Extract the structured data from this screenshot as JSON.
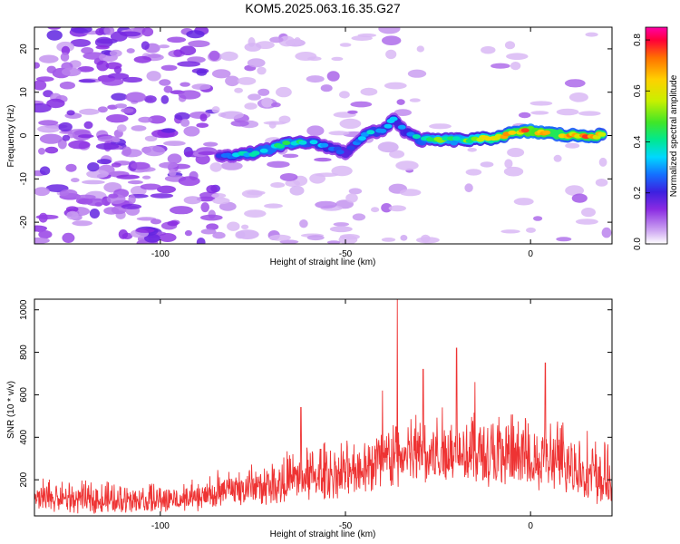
{
  "title": "KOM5.2025.063.16.35.G27",
  "chart_data": [
    {
      "type": "heatmap",
      "xlabel": "Height of straight line (km)",
      "ylabel": "Frequency (Hz)",
      "xlim": [
        -134,
        22
      ],
      "ylim": [
        -25,
        25
      ],
      "x_ticks": [
        -100,
        -50,
        0
      ],
      "y_ticks": [
        -20,
        -10,
        0,
        10,
        20
      ],
      "colorbar": {
        "label": "Normalized spectral amplitude",
        "range": [
          0.0,
          0.85
        ],
        "ticks": [
          0.0,
          0.2,
          0.4,
          0.6,
          0.8
        ],
        "colors": [
          "#ffffff",
          "#cfa8f2",
          "#8a2be2",
          "#3c20e0",
          "#1470ff",
          "#00d8ff",
          "#00e890",
          "#3fe628",
          "#c8f000",
          "#ffd000",
          "#ff7000",
          "#ff0038",
          "#ff00a8"
        ]
      },
      "noise_region": {
        "x": [
          -134,
          -84
        ],
        "y": [
          -25,
          25
        ],
        "level": "0.05-0.15"
      },
      "ridge": [
        {
          "x": -84,
          "y": -4.5,
          "v": 0.28
        },
        {
          "x": -78,
          "y": -4.5,
          "v": 0.4
        },
        {
          "x": -72,
          "y": -3.5,
          "v": 0.45
        },
        {
          "x": -66,
          "y": -2.0,
          "v": 0.5
        },
        {
          "x": -60,
          "y": -1.5,
          "v": 0.42
        },
        {
          "x": -55,
          "y": -2.5,
          "v": 0.35
        },
        {
          "x": -50,
          "y": -4.0,
          "v": 0.3
        },
        {
          "x": -47,
          "y": -1.5,
          "v": 0.33
        },
        {
          "x": -44,
          "y": 0.5,
          "v": 0.4
        },
        {
          "x": -40,
          "y": 1.0,
          "v": 0.38
        },
        {
          "x": -37,
          "y": 4.0,
          "v": 0.35
        },
        {
          "x": -34,
          "y": 1.0,
          "v": 0.33
        },
        {
          "x": -30,
          "y": -1.0,
          "v": 0.42
        },
        {
          "x": -25,
          "y": -1.0,
          "v": 0.55
        },
        {
          "x": -20,
          "y": -1.0,
          "v": 0.5
        },
        {
          "x": -15,
          "y": -1.0,
          "v": 0.58
        },
        {
          "x": -10,
          "y": -0.5,
          "v": 0.68
        },
        {
          "x": -5,
          "y": 0.5,
          "v": 0.74
        },
        {
          "x": 0,
          "y": 1.0,
          "v": 0.84
        },
        {
          "x": 5,
          "y": 0.5,
          "v": 0.78
        },
        {
          "x": 10,
          "y": 0.0,
          "v": 0.74
        },
        {
          "x": 15,
          "y": 0.0,
          "v": 0.78
        },
        {
          "x": 20,
          "y": 0.0,
          "v": 0.7
        }
      ]
    },
    {
      "type": "line",
      "xlabel": "Height of straight line (km)",
      "ylabel": "SNR (10 * v/v)",
      "xlim": [
        -134,
        22
      ],
      "ylim": [
        30,
        1050
      ],
      "x_ticks": [
        -100,
        -50,
        0
      ],
      "y_ticks": [
        200,
        400,
        600,
        800,
        1000
      ],
      "series": [
        {
          "color": "#ee3333",
          "envelope": [
            {
              "x": -134,
              "lo": 40,
              "hi": 230
            },
            {
              "x": -120,
              "lo": 40,
              "hi": 210
            },
            {
              "x": -100,
              "lo": 40,
              "hi": 200
            },
            {
              "x": -90,
              "lo": 50,
              "hi": 210
            },
            {
              "x": -80,
              "lo": 60,
              "hi": 300
            },
            {
              "x": -70,
              "lo": 80,
              "hi": 320
            },
            {
              "x": -60,
              "lo": 100,
              "hi": 400
            },
            {
              "x": -50,
              "lo": 110,
              "hi": 420
            },
            {
              "x": -40,
              "lo": 150,
              "hi": 520
            },
            {
              "x": -30,
              "lo": 170,
              "hi": 560
            },
            {
              "x": -20,
              "lo": 180,
              "hi": 580
            },
            {
              "x": -10,
              "lo": 160,
              "hi": 560
            },
            {
              "x": 0,
              "lo": 140,
              "hi": 540
            },
            {
              "x": 10,
              "lo": 120,
              "hi": 520
            },
            {
              "x": 22,
              "lo": 60,
              "hi": 380
            }
          ],
          "spikes": [
            {
              "x": -36,
              "y": 1050
            },
            {
              "x": -29,
              "y": 720
            },
            {
              "x": -20,
              "y": 820
            },
            {
              "x": -40,
              "y": 620
            },
            {
              "x": 4,
              "y": 750
            },
            {
              "x": -15,
              "y": 660
            },
            {
              "x": -62,
              "y": 540
            }
          ]
        }
      ]
    }
  ]
}
